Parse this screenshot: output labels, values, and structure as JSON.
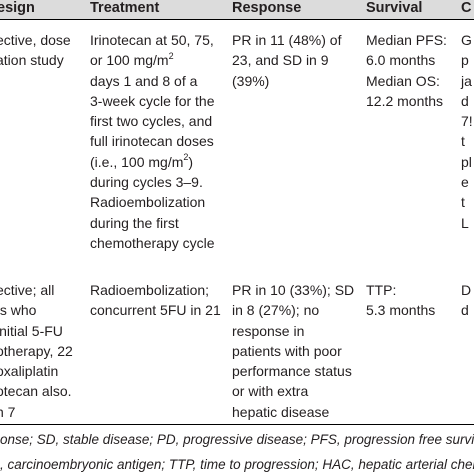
{
  "table": {
    "headers": [
      "esign",
      "Treatment",
      "Response",
      "Survival",
      "C"
    ],
    "row1": {
      "design": [
        "ective, dose",
        "ation study"
      ],
      "treatment": [
        "Irinotecan at 50, 75,",
        "or 100 mg/m",
        "2",
        " during",
        "days 1 and 8 of a",
        "3-week cycle for the",
        "first two cycles, and",
        "full irinotecan doses",
        "(i.e., 100 mg/m",
        "2",
        ")",
        "during cycles 3–9.",
        "Radioembolization",
        "during the first",
        "chemotherapy cycle"
      ],
      "response": [
        "PR in 11 (48%) of",
        "23, and SD in 9",
        "(39%)"
      ],
      "survival": [
        "Median PFS:",
        "6.0 months",
        "Median OS:",
        "12.2 months"
      ],
      "comments": [
        "G",
        "p",
        "ja",
        "d",
        "7!",
        "t",
        "pl",
        "e",
        "t",
        "L"
      ]
    },
    "row2": {
      "design": [
        "ective; all",
        "ts who",
        "initial 5-FU",
        "otherapy, 22",
        "oxaliplatin",
        "otecan also.",
        "n 7"
      ],
      "treatment": [
        "Radioembolization;",
        "concurrent 5FU in 21"
      ],
      "response": [
        "PR in 10 (33%); SD",
        "in 8 (27%); no",
        "response in",
        "patients with poor",
        "performance status",
        "or with extra",
        "hepatic disease"
      ],
      "survival": [
        "TTP:",
        "5.3 months"
      ],
      "comments": [
        "D",
        "d"
      ]
    },
    "footnotes": [
      "onse; SD, stable disease; PD, progressive disease; PFS, progression free survival; EH",
      ", carcinoembryonic antigen; TTP, time to progression; HAC, hepatic arterial chemoin"
    ]
  }
}
